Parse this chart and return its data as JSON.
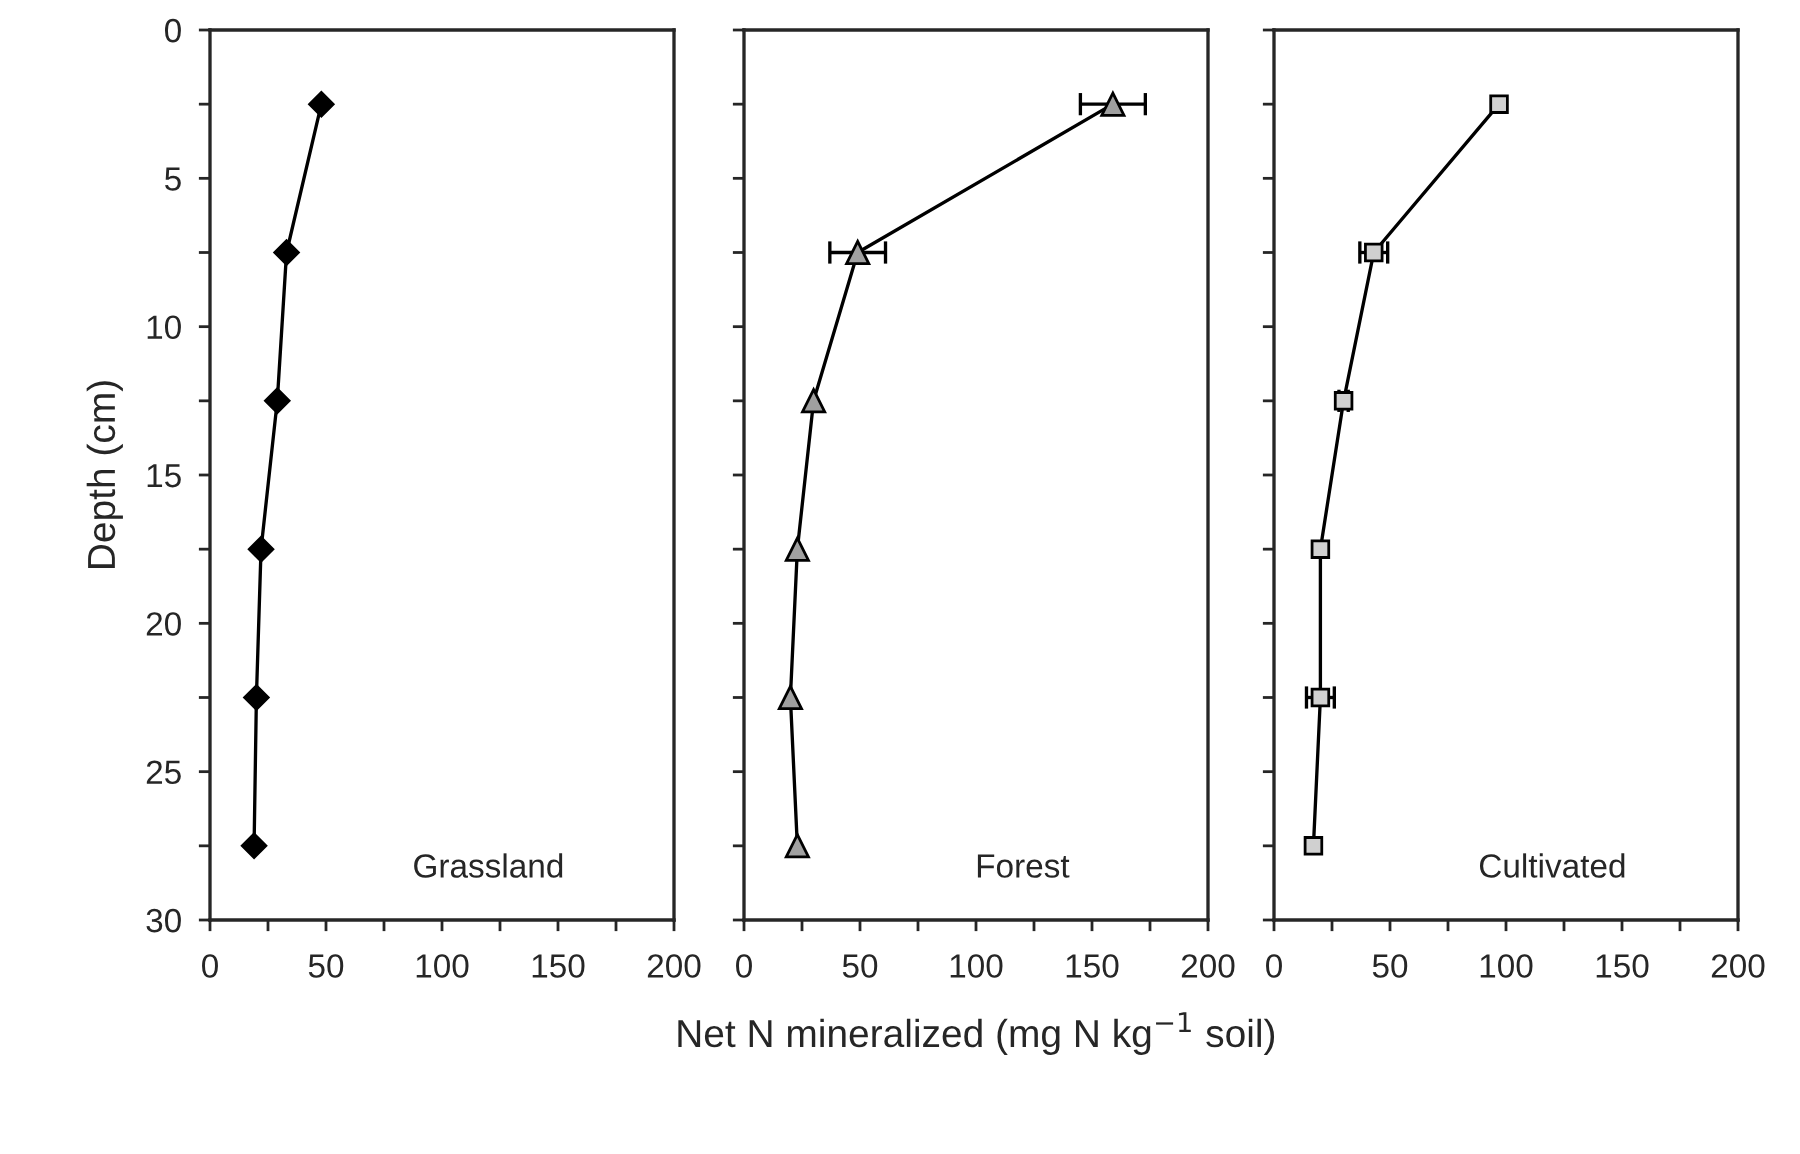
{
  "chart_data": [
    {
      "type": "line",
      "marker": "diamond",
      "ylabel": "Depth (cm)",
      "annotations": [
        "Grassland"
      ],
      "tick_labels": true,
      "xlim": [
        0,
        200
      ],
      "ylim": [
        30,
        0
      ],
      "xticks": [
        0,
        {
          "value": 25,
          "label": null
        },
        50,
        {
          "value": 75,
          "label": null
        },
        100,
        {
          "value": 125,
          "label": null
        },
        150,
        {
          "value": 175,
          "label": null
        },
        200
      ],
      "yticks": [
        0,
        {
          "value": 2.5,
          "label": null
        },
        5,
        {
          "value": 7.5,
          "label": null
        },
        10,
        {
          "value": 12.5,
          "label": null
        },
        15,
        {
          "value": 17.5,
          "label": null
        },
        20,
        {
          "value": 22.5,
          "label": null
        },
        25,
        {
          "value": 27.5,
          "label": null
        },
        30
      ],
      "series": [
        {
          "color": "#000000",
          "x": [
            48,
            33,
            29,
            22,
            20,
            19
          ],
          "values": [
            2.5,
            7.5,
            12.5,
            17.5,
            22.5,
            27.5
          ]
        }
      ]
    },
    {
      "type": "line",
      "marker": "triangle",
      "xlabel": "Net N mineralized (mg N kg$^{−1}$ soil)",
      "annotations": [
        "Forest"
      ],
      "tick_labels": "x",
      "xlim": [
        0,
        200
      ],
      "ylim": [
        30,
        0
      ],
      "xticks": [
        0,
        {
          "value": 25,
          "label": null
        },
        50,
        {
          "value": 75,
          "label": null
        },
        100,
        {
          "value": 125,
          "label": null
        },
        150,
        {
          "value": 175,
          "label": null
        },
        200
      ],
      "yticks": [
        0,
        {
          "value": 2.5,
          "label": null
        },
        5,
        {
          "value": 7.5,
          "label": null
        },
        10,
        {
          "value": 12.5,
          "label": null
        },
        15,
        {
          "value": 17.5,
          "label": null
        },
        20,
        {
          "value": 22.5,
          "label": null
        },
        25,
        {
          "value": 27.5,
          "label": null
        },
        30
      ],
      "series": [
        {
          "color": "#a0a0a0",
          "x": [
            159,
            49,
            30,
            23,
            20,
            23
          ],
          "values": [
            2.5,
            7.5,
            12.5,
            17.5,
            22.5,
            27.5
          ],
          "xerrors": [
            14,
            12,
            null,
            null,
            null,
            null
          ]
        }
      ]
    },
    {
      "type": "line",
      "marker": "square",
      "annotations": [
        "Cultivated"
      ],
      "tick_labels": "x",
      "xlim": [
        0,
        200
      ],
      "ylim": [
        30,
        0
      ],
      "xticks": [
        0,
        {
          "value": 25,
          "label": null
        },
        50,
        {
          "value": 75,
          "label": null
        },
        100,
        {
          "value": 125,
          "label": null
        },
        150,
        {
          "value": 175,
          "label": null
        },
        200
      ],
      "yticks": [
        0,
        {
          "value": 2.5,
          "label": null
        },
        5,
        {
          "value": 7.5,
          "label": null
        },
        10,
        {
          "value": 12.5,
          "label": null
        },
        15,
        {
          "value": 17.5,
          "label": null
        },
        20,
        {
          "value": 22.5,
          "label": null
        },
        25,
        {
          "value": 27.5,
          "label": null
        },
        30
      ],
      "series": [
        {
          "color": "#d0d0d0",
          "x": [
            97,
            43,
            30,
            20,
            20,
            17
          ],
          "values": [
            2.5,
            7.5,
            12.5,
            17.5,
            22.5,
            27.5
          ],
          "xerrors": [
            null,
            6,
            2,
            null,
            6,
            null
          ]
        }
      ]
    }
  ]
}
